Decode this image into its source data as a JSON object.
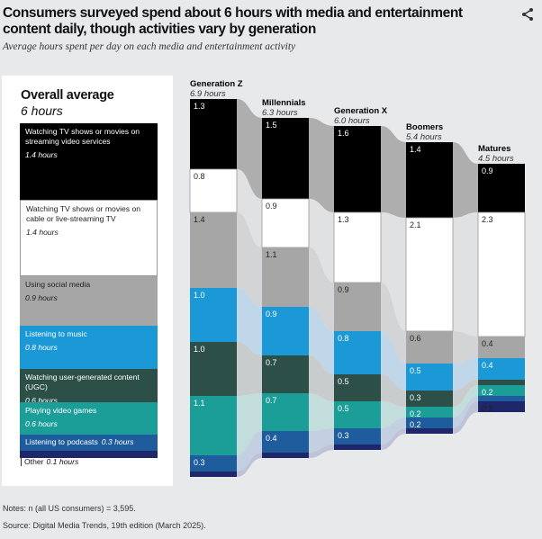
{
  "header": {
    "title": "Consumers surveyed spend about 6 hours with media and entertainment content daily, though activities vary by generation",
    "subtitle": "Average hours spent per day on each media and entertainment activity",
    "share_icon": "share-icon"
  },
  "overall": {
    "title": "Overall average",
    "hours": "6 hours",
    "items": [
      {
        "label": "Watching TV shows or movies on streaming video services",
        "hours_label": "1.4 hours",
        "value": 1.4,
        "color": "#000000",
        "text_color": "#ffffff"
      },
      {
        "label": "Watching TV shows or movies on cable or live-streaming TV",
        "hours_label": "1.4 hours",
        "value": 1.4,
        "color": "#ffffff",
        "text_color": "#222222"
      },
      {
        "label": "Using social media",
        "hours_label": "0.9 hours",
        "value": 0.9,
        "color": "#a6a6a6",
        "text_color": "#222222"
      },
      {
        "label": "Listening to music",
        "hours_label": "0.8 hours",
        "value": 0.8,
        "color": "#1b98d6",
        "text_color": "#ffffff"
      },
      {
        "label": "Watching user-generated content (UGC)",
        "hours_label": "0.6 hours",
        "value": 0.6,
        "color": "#2c5047",
        "text_color": "#ffffff"
      },
      {
        "label": "Playing video games",
        "hours_label": "0.6 hours",
        "value": 0.6,
        "color": "#1b9e98",
        "text_color": "#ffffff"
      },
      {
        "label": "Listening to podcasts",
        "hours_label": "0.3 hours",
        "value": 0.3,
        "color": "#1f5c9e",
        "text_color": "#ffffff"
      },
      {
        "label": "Other",
        "hours_label": "0.1 hours",
        "value": 0.1,
        "color": "#1d2769",
        "text_color": "#222222"
      }
    ]
  },
  "chart_data": {
    "type": "stacked-bar-flow",
    "title": "Consumers surveyed spend about 6 hours with media and entertainment content daily, though activities vary by generation",
    "subtitle": "Average hours spent per day on each media and entertainment activity",
    "categories": [
      "Streaming video",
      "Cable / live-streaming TV",
      "Social media",
      "Music",
      "UGC",
      "Video games",
      "Podcasts",
      "Other"
    ],
    "flow_colors": [
      "#a3a3a3",
      "#dedfe1",
      "#cfd0d2",
      "#b9d4ea",
      "#c3c7c7",
      "#bcdad9",
      "#bccbe0",
      "#b8bbd3"
    ],
    "generations": [
      {
        "name": "Generation Z",
        "total": "6.9 hours",
        "values": [
          1.3,
          0.8,
          1.4,
          1.0,
          1.0,
          1.1,
          0.3,
          0.1
        ],
        "labels": [
          "1.3",
          "0.8",
          "1.4",
          "1.0",
          "1.0",
          "1.1",
          "0.3",
          ""
        ]
      },
      {
        "name": "Millennials",
        "total": "6.3 hours",
        "values": [
          1.5,
          0.9,
          1.1,
          0.9,
          0.7,
          0.7,
          0.4,
          0.1
        ],
        "labels": [
          "1.5",
          "0.9",
          "1.1",
          "0.9",
          "0.7",
          "0.7",
          "0.4",
          ""
        ]
      },
      {
        "name": "Generation X",
        "total": "6.0 hours",
        "values": [
          1.6,
          1.3,
          0.9,
          0.8,
          0.5,
          0.5,
          0.3,
          0.1
        ],
        "labels": [
          "1.6",
          "1.3",
          "0.9",
          "0.8",
          "0.5",
          "0.5",
          "0.3",
          ""
        ]
      },
      {
        "name": "Boomers",
        "total": "5.4 hours",
        "values": [
          1.4,
          2.1,
          0.6,
          0.5,
          0.3,
          0.2,
          0.2,
          0.1
        ],
        "labels": [
          "1.4",
          "2.1",
          "0.6",
          "0.5",
          "0.3",
          "0.2",
          "0.2",
          ""
        ]
      },
      {
        "name": "Matures",
        "total": "4.5 hours",
        "values": [
          0.9,
          2.3,
          0.4,
          0.4,
          0.1,
          0.2,
          0.1,
          0.2
        ],
        "labels": [
          "0.9",
          "2.3",
          "0.4",
          "0.4",
          "",
          "0.2",
          "",
          "0.2"
        ]
      }
    ]
  },
  "footer": {
    "notes": "Notes: n (all US consumers) = 3,595.",
    "source": "Source: Digital Media Trends, 19th edition (March 2025)."
  }
}
